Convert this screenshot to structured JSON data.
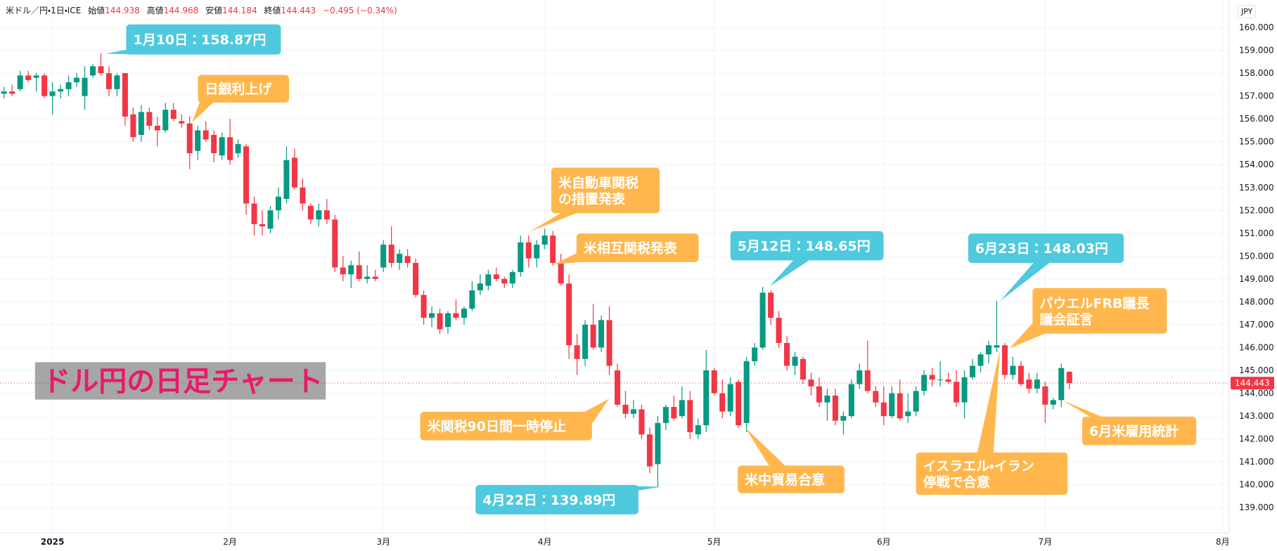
{
  "header": {
    "symbol": "米ドル／円・1日・ICE",
    "fields": [
      {
        "label": "始値",
        "value": "144.938"
      },
      {
        "label": "高値",
        "value": "144.968"
      },
      {
        "label": "安値",
        "value": "144.184"
      },
      {
        "label": "終値",
        "value": "144.443"
      }
    ],
    "change": "−0.495 (−0.34%)"
  },
  "currency": "JPY",
  "overlay_title": "ドル円の日足チャート",
  "chart_data": {
    "type": "candlestick",
    "up_color": "#089981",
    "down_color": "#f23645",
    "open": [
      157.1,
      157.2,
      157.3,
      157.9,
      157.8,
      157.9,
      157.0,
      157.2,
      157.3,
      157.6,
      157.0,
      157.9,
      158.3,
      158.0,
      157.3,
      158.0,
      156.2,
      155.3,
      156.3,
      155.7,
      155.5,
      156.4,
      155.9,
      155.8,
      154.6,
      155.5,
      155.3,
      154.4,
      155.2,
      154.5,
      154.8,
      152.3,
      151.4,
      151.2,
      152.0,
      152.5,
      154.3,
      153.0,
      152.2,
      151.6,
      152.0,
      151.6,
      149.5,
      149.2,
      149.6,
      149.0,
      149.1,
      149.5,
      150.5,
      149.7,
      150.0,
      149.7,
      148.3,
      147.3,
      147.5,
      146.9,
      147.5,
      147.3,
      147.7,
      148.5,
      148.7,
      149.2,
      149.0,
      148.8,
      149.3,
      150.6,
      149.9,
      150.5,
      150.9,
      149.7,
      148.8,
      146.1,
      145.5,
      147.0,
      146.0,
      147.2,
      145.0,
      143.5,
      143.1,
      143.3,
      142.2,
      140.9,
      142.7,
      143.4,
      143.0,
      143.7,
      142.2,
      142.6,
      145.0,
      144.0,
      143.2,
      144.5,
      142.7,
      145.4,
      146.0,
      148.4,
      147.3,
      146.2,
      145.2,
      145.5,
      144.6,
      144.3,
      143.6,
      143.9,
      142.8,
      143.0,
      144.4,
      145.0,
      144.1,
      143.6,
      143.0,
      144.0,
      143.0,
      143.2,
      144.1,
      144.8,
      144.6,
      144.6,
      144.5,
      143.6,
      144.7,
      145.2,
      145.7,
      146.0,
      146.1,
      144.8,
      145.2,
      144.6,
      144.2,
      144.3,
      143.5,
      143.7,
      144.938
    ],
    "high": [
      157.4,
      157.5,
      158.1,
      158.1,
      158.0,
      158.0,
      157.6,
      157.5,
      157.9,
      158.0,
      158.3,
      158.4,
      158.87,
      158.3,
      158.0,
      158.0,
      156.5,
      156.6,
      156.5,
      156.1,
      156.7,
      156.7,
      156.2,
      156.1,
      155.7,
      155.9,
      155.5,
      155.4,
      156.0,
      155.1,
      154.9,
      152.6,
      152.0,
      152.2,
      153.0,
      154.8,
      154.7,
      153.4,
      152.3,
      152.3,
      152.5,
      151.8,
      150.0,
      149.8,
      150.2,
      149.6,
      149.4,
      150.7,
      151.3,
      150.3,
      150.3,
      149.9,
      148.5,
      147.8,
      147.7,
      147.6,
      148.1,
      147.8,
      148.9,
      149.2,
      149.4,
      149.5,
      149.1,
      149.4,
      150.9,
      150.9,
      150.7,
      151.2,
      151.1,
      150.1,
      149.2,
      146.6,
      147.2,
      147.9,
      147.4,
      147.8,
      145.3,
      144.1,
      143.7,
      143.5,
      142.5,
      143.0,
      143.5,
      143.9,
      144.3,
      144.1,
      142.9,
      145.9,
      145.1,
      144.6,
      144.7,
      144.6,
      145.6,
      146.2,
      148.65,
      148.5,
      147.6,
      146.5,
      145.8,
      145.6,
      144.9,
      144.7,
      144.2,
      144.2,
      143.2,
      144.6,
      145.3,
      146.3,
      144.3,
      144.3,
      144.3,
      144.6,
      144.0,
      144.3,
      145.0,
      145.1,
      145.4,
      144.9,
      145.0,
      145.0,
      145.5,
      145.8,
      146.3,
      148.03,
      146.2,
      145.6,
      145.4,
      144.9,
      144.9,
      144.5,
      143.8,
      145.3,
      144.968
    ],
    "low": [
      156.9,
      157.0,
      157.2,
      157.6,
      157.2,
      156.9,
      156.2,
      156.9,
      157.0,
      157.4,
      156.4,
      157.8,
      157.9,
      157.0,
      157.0,
      155.7,
      155.0,
      155.0,
      155.5,
      154.8,
      155.4,
      155.9,
      155.6,
      153.8,
      154.2,
      155.0,
      154.1,
      154.2,
      154.0,
      154.3,
      151.8,
      150.9,
      150.9,
      151.0,
      151.6,
      152.3,
      152.9,
      152.0,
      151.4,
      151.3,
      151.4,
      149.3,
      148.9,
      148.6,
      148.9,
      148.8,
      148.9,
      149.3,
      149.5,
      149.4,
      149.5,
      148.2,
      147.0,
      146.9,
      146.6,
      146.6,
      147.2,
      147.0,
      147.6,
      148.3,
      148.5,
      148.9,
      148.6,
      148.6,
      149.1,
      149.5,
      149.5,
      150.3,
      149.6,
      148.7,
      145.5,
      144.8,
      145.2,
      145.9,
      145.8,
      144.8,
      143.4,
      142.9,
      142.9,
      142.0,
      140.5,
      139.89,
      142.4,
      142.8,
      142.9,
      142.0,
      142.0,
      142.3,
      143.9,
      142.9,
      143.0,
      142.5,
      142.3,
      145.2,
      145.9,
      147.0,
      146.0,
      145.0,
      144.8,
      144.4,
      143.9,
      143.4,
      142.8,
      142.6,
      142.2,
      142.9,
      144.2,
      144.0,
      143.4,
      142.6,
      142.9,
      142.8,
      142.7,
      143.0,
      143.9,
      144.3,
      144.3,
      144.4,
      143.4,
      142.9,
      144.6,
      144.9,
      145.3,
      145.8,
      144.6,
      144.6,
      144.3,
      144.0,
      144.0,
      142.7,
      143.3,
      143.4,
      144.184
    ],
    "close": [
      157.2,
      157.1,
      157.9,
      157.7,
      157.9,
      157.0,
      157.2,
      157.3,
      157.6,
      157.8,
      157.8,
      158.3,
      158.0,
      157.3,
      157.9,
      156.1,
      155.2,
      156.3,
      155.7,
      155.5,
      156.4,
      156.0,
      155.8,
      154.5,
      155.5,
      155.1,
      154.5,
      155.2,
      154.2,
      154.9,
      152.3,
      151.4,
      151.3,
      152.0,
      152.6,
      154.2,
      153.0,
      152.3,
      151.6,
      152.0,
      151.6,
      149.5,
      149.2,
      149.6,
      149.0,
      149.1,
      149.0,
      150.5,
      149.7,
      150.1,
      149.7,
      148.3,
      147.3,
      147.5,
      146.8,
      147.5,
      147.3,
      147.7,
      148.5,
      148.8,
      149.2,
      149.0,
      148.8,
      149.3,
      150.6,
      149.9,
      150.5,
      150.9,
      149.7,
      148.8,
      146.1,
      145.5,
      147.0,
      146.0,
      147.2,
      145.2,
      143.5,
      143.1,
      143.3,
      142.2,
      140.8,
      142.7,
      143.4,
      142.9,
      143.7,
      142.3,
      142.6,
      145.0,
      144.0,
      143.2,
      144.4,
      142.6,
      145.4,
      146.0,
      148.4,
      147.3,
      146.2,
      145.2,
      145.6,
      144.6,
      144.3,
      143.6,
      143.9,
      142.8,
      143.0,
      144.4,
      145.0,
      144.1,
      143.6,
      143.0,
      144.0,
      142.9,
      143.2,
      144.1,
      144.8,
      144.6,
      144.6,
      144.5,
      143.6,
      144.7,
      145.2,
      145.7,
      146.1,
      146.1,
      144.8,
      145.2,
      144.4,
      144.2,
      144.6,
      143.5,
      143.7,
      145.1,
      144.443
    ],
    "xlim": [
      -0.5,
      151.8
    ],
    "xticks": [
      {
        "value": 6,
        "label": "2025"
      },
      {
        "value": 28,
        "label": "2月"
      },
      {
        "value": 47,
        "label": "3月"
      },
      {
        "value": 67,
        "label": "4月"
      },
      {
        "value": 88,
        "label": "5月"
      },
      {
        "value": 109,
        "label": "6月"
      },
      {
        "value": 129,
        "label": "7月"
      },
      {
        "value": 151,
        "label": "8月"
      }
    ],
    "ylim": [
      137.9,
      161.2
    ],
    "yticks": [
      {
        "value": 139,
        "label": "139.000"
      },
      {
        "value": 140,
        "label": "140.000"
      },
      {
        "value": 141,
        "label": "141.000"
      },
      {
        "value": 142,
        "label": "142.000"
      },
      {
        "value": 143,
        "label": "143.000"
      },
      {
        "value": 144,
        "label": "144.000"
      },
      {
        "value": 145,
        "label": "145.000"
      },
      {
        "value": 146,
        "label": "146.000"
      },
      {
        "value": 147,
        "label": "147.000"
      },
      {
        "value": 148,
        "label": "148.000"
      },
      {
        "value": 149,
        "label": "149.000"
      },
      {
        "value": 150,
        "label": "150.000"
      },
      {
        "value": 151,
        "label": "151.000"
      },
      {
        "value": 152,
        "label": "152.000"
      },
      {
        "value": 153,
        "label": "153.000"
      },
      {
        "value": 154,
        "label": "154.000"
      },
      {
        "value": 155,
        "label": "155.000"
      },
      {
        "value": 156,
        "label": "156.000"
      },
      {
        "value": 157,
        "label": "157.000"
      },
      {
        "value": 158,
        "label": "158.000"
      },
      {
        "value": 159,
        "label": "159.000"
      },
      {
        "value": 160,
        "label": "160.000"
      }
    ],
    "grid": true,
    "last_price": 144.443,
    "last_price_color": "#f23645",
    "annotations": [
      {
        "lines": [
          "1月10日：158.87円"
        ],
        "color": "#4fc9dd"
      },
      {
        "lines": [
          "日銀利上げ"
        ],
        "color": "#ffb74d"
      },
      {
        "lines": [
          "米自動車関税",
          "の措置発表"
        ],
        "color": "#ffb74d"
      },
      {
        "lines": [
          "米相互関税発表"
        ],
        "color": "#ffb74d"
      },
      {
        "lines": [
          "5月12日：148.65円"
        ],
        "color": "#4fc9dd"
      },
      {
        "lines": [
          "6月23日：148.03円"
        ],
        "color": "#4fc9dd"
      },
      {
        "lines": [
          "パウエルFRB議長",
          "議会証言"
        ],
        "color": "#ffb74d"
      },
      {
        "lines": [
          "米関税90日間一時停止"
        ],
        "color": "#ffb74d"
      },
      {
        "lines": [
          "4月22日：139.89円"
        ],
        "color": "#4fc9dd"
      },
      {
        "lines": [
          "米中貿易合意"
        ],
        "color": "#ffb74d"
      },
      {
        "lines": [
          "イスラエル・イラン",
          "停戦で合意"
        ],
        "color": "#ffb74d"
      },
      {
        "lines": [
          "6月米雇用統計"
        ],
        "color": "#ffb74d"
      }
    ]
  }
}
